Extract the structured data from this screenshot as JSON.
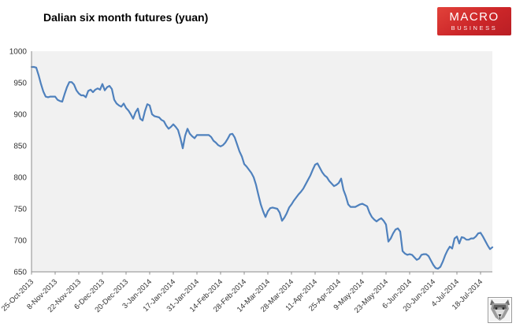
{
  "header": {
    "title": "Dalian six month futures (yuan)"
  },
  "logo": {
    "line1": "MACRO",
    "line2": "BUSINESS",
    "bg_color": "#c6242a",
    "text_color": "#ffffff"
  },
  "chart_data": {
    "type": "line",
    "title": "Dalian six month futures (yuan)",
    "xlabel": "",
    "ylabel": "",
    "ylim": [
      650,
      1000
    ],
    "y_ticks": [
      650,
      700,
      750,
      800,
      850,
      900,
      950,
      1000
    ],
    "grid": "off",
    "legend": "none",
    "plot_bg": "#f1f1f1",
    "axis_color": "#8c8c8c",
    "label_color": "#333333",
    "line_color": "#4f81bd",
    "points_per_tick": 10,
    "x_tick_labels": [
      "25-Oct-2013",
      "8-Nov-2013",
      "22-Nov-2013",
      "6-Dec-2013",
      "20-Dec-2013",
      "3-Jan-2014",
      "17-Jan-2014",
      "31-Jan-2014",
      "14-Feb-2014",
      "28-Feb-2014",
      "14-Mar-2014",
      "28-Mar-2014",
      "11-Apr-2014",
      "25-Apr-2014",
      "9-May-2014",
      "23-May-2014",
      "6-Jun-2014",
      "20-Jun-2014",
      "4-Jul-2014",
      "18-Jul-2014"
    ],
    "series": [
      {
        "name": "Dalian six month futures (yuan)",
        "values": [
          975,
          975,
          974,
          962,
          948,
          936,
          928,
          927,
          928,
          928,
          928,
          923,
          921,
          920,
          932,
          943,
          951,
          951,
          947,
          938,
          933,
          930,
          930,
          927,
          937,
          939,
          935,
          939,
          941,
          939,
          948,
          938,
          943,
          945,
          940,
          923,
          917,
          914,
          912,
          917,
          910,
          906,
          900,
          893,
          903,
          909,
          893,
          890,
          905,
          916,
          914,
          900,
          897,
          896,
          895,
          891,
          889,
          882,
          877,
          880,
          884,
          880,
          875,
          862,
          846,
          866,
          877,
          869,
          865,
          862,
          867,
          867,
          867,
          867,
          867,
          867,
          864,
          858,
          855,
          851,
          849,
          851,
          855,
          861,
          868,
          869,
          863,
          852,
          841,
          833,
          821,
          817,
          812,
          807,
          800,
          788,
          772,
          757,
          746,
          737,
          746,
          751,
          752,
          751,
          750,
          744,
          731,
          736,
          743,
          752,
          757,
          763,
          768,
          773,
          777,
          782,
          789,
          796,
          803,
          812,
          820,
          822,
          815,
          808,
          803,
          800,
          794,
          790,
          786,
          788,
          791,
          798,
          780,
          770,
          757,
          753,
          753,
          753,
          755,
          757,
          758,
          756,
          754,
          744,
          737,
          733,
          730,
          733,
          735,
          731,
          725,
          698,
          703,
          711,
          717,
          719,
          714,
          683,
          679,
          677,
          678,
          677,
          673,
          669,
          671,
          677,
          678,
          678,
          675,
          668,
          661,
          656,
          655,
          658,
          666,
          676,
          684,
          690,
          687,
          703,
          706,
          695,
          705,
          704,
          701,
          701,
          703,
          703,
          706,
          711,
          712,
          706,
          699,
          692,
          686,
          689
        ]
      }
    ]
  },
  "footer": {
    "avatar": "wolf-face"
  }
}
